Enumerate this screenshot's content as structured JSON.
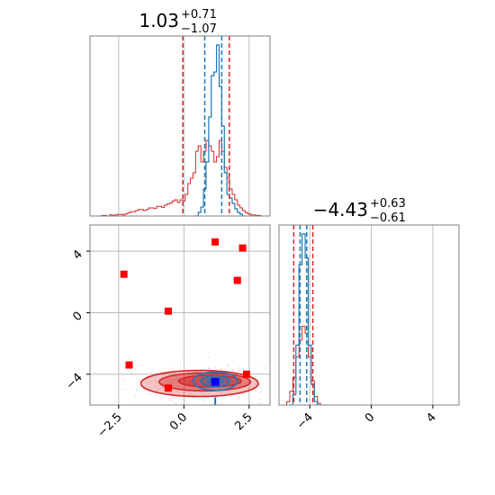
{
  "chart_data": {
    "type": "corner",
    "colors": {
      "posterior_a": "#d62728",
      "posterior_b": "#1f77b4",
      "truth": "#ff0000",
      "point": "#0000ff",
      "grid": "#b0b0b0"
    },
    "param_x": {
      "title_value": "1.03",
      "title_plus": "+0.71",
      "title_minus": "−1.07",
      "xlim": [
        -3.6,
        3.3
      ],
      "ticks": [
        -2.5,
        0.0,
        2.5
      ],
      "tick_labels": [
        "−2.5",
        "0.0",
        "2.5"
      ],
      "quantiles_red": [
        -0.04,
        1.03,
        1.74
      ],
      "quantiles_blue": [
        0.8,
        1.03,
        1.45
      ],
      "bin_width": 0.1,
      "hist_red": {
        "x": [
          -3.2,
          -3.1,
          -3.0,
          -2.9,
          -2.8,
          -2.7,
          -2.6,
          -2.5,
          -2.4,
          -2.3,
          -2.2,
          -2.1,
          -2.0,
          -1.9,
          -1.8,
          -1.7,
          -1.6,
          -1.5,
          -1.4,
          -1.3,
          -1.2,
          -1.1,
          -1.0,
          -0.9,
          -0.8,
          -0.7,
          -0.6,
          -0.5,
          -0.4,
          -0.3,
          -0.2,
          -0.1,
          0.0,
          0.1,
          0.2,
          0.3,
          0.4,
          0.5,
          0.6,
          0.7,
          0.8,
          0.9,
          1.0,
          1.1,
          1.2,
          1.3,
          1.4,
          1.5,
          1.6,
          1.7,
          1.8,
          1.9,
          2.0,
          2.1,
          2.2,
          2.3,
          2.4,
          2.5,
          2.6,
          2.7,
          2.8,
          2.9,
          3.0
        ],
        "y": [
          0.0,
          0.003,
          0.003,
          0.0,
          0.006,
          0.003,
          0.006,
          0.009,
          0.009,
          0.006,
          0.012,
          0.018,
          0.024,
          0.024,
          0.03,
          0.036,
          0.036,
          0.03,
          0.036,
          0.045,
          0.045,
          0.042,
          0.054,
          0.054,
          0.048,
          0.06,
          0.066,
          0.072,
          0.084,
          0.09,
          0.075,
          0.09,
          0.084,
          0.12,
          0.18,
          0.21,
          0.24,
          0.36,
          0.39,
          0.3,
          0.36,
          0.42,
          0.39,
          0.36,
          0.3,
          0.33,
          0.42,
          0.36,
          0.27,
          0.21,
          0.15,
          0.12,
          0.09,
          0.06,
          0.045,
          0.03,
          0.018,
          0.012,
          0.006,
          0.006,
          0.003,
          0.003,
          0.0
        ]
      },
      "hist_blue": {
        "x": [
          0.4,
          0.5,
          0.6,
          0.7,
          0.8,
          0.9,
          1.0,
          1.1,
          1.2,
          1.3,
          1.4,
          1.5,
          1.6,
          1.7,
          1.8,
          1.9,
          2.0,
          2.1,
          2.2,
          2.3
        ],
        "y": [
          0.0,
          0.0,
          0.02,
          0.05,
          0.15,
          0.3,
          0.55,
          0.78,
          0.8,
          0.95,
          0.72,
          0.5,
          0.24,
          0.12,
          0.1,
          0.07,
          0.04,
          0.02,
          0.01,
          0.0
        ]
      }
    },
    "param_y": {
      "title_value": "−4.43",
      "title_plus": "+0.63",
      "title_minus": "−0.61",
      "ylim": [
        -6.0,
        5.7
      ],
      "ticks": [
        -4,
        0,
        4
      ],
      "tick_labels": [
        "−4",
        "0",
        "4"
      ],
      "quantiles_red": [
        -5.04,
        -4.43,
        -3.8
      ],
      "quantiles_blue": [
        -4.63,
        -4.43,
        -4.2
      ],
      "bin_width": 0.2,
      "hist_red": {
        "x": [
          -5.6,
          -5.4,
          -5.2,
          -5.0,
          -4.8,
          -4.6,
          -4.4,
          -4.2,
          -4.0,
          -3.8,
          -3.6,
          -3.4,
          -3.2
        ],
        "y": [
          0.0,
          0.02,
          0.08,
          0.16,
          0.28,
          0.38,
          0.46,
          0.42,
          0.28,
          0.14,
          0.05,
          0.01,
          0.0
        ]
      },
      "hist_blue": {
        "x": [
          -5.2,
          -5.0,
          -4.8,
          -4.6,
          -4.4,
          -4.2,
          -4.0,
          -3.8,
          -3.6,
          -3.4
        ],
        "y": [
          0.0,
          0.06,
          0.35,
          0.82,
          1.0,
          0.86,
          0.35,
          0.12,
          0.02,
          0.0
        ]
      }
    },
    "panel_y_xlim": [
      -6.0,
      5.7
    ],
    "panel_y_ticks": [
      -4,
      0,
      4
    ],
    "panel_y_tick_labels": [
      "−4",
      "0",
      "4"
    ],
    "truth_points": [
      {
        "x": 2.25,
        "y": 4.2
      },
      {
        "x": 1.2,
        "y": 4.6
      },
      {
        "x": -2.3,
        "y": 2.5
      },
      {
        "x": 2.05,
        "y": 2.1
      },
      {
        "x": -0.6,
        "y": 0.1
      },
      {
        "x": -2.1,
        "y": -3.4
      },
      {
        "x": 2.4,
        "y": -4.0
      },
      {
        "x": -0.6,
        "y": -4.9
      }
    ],
    "highlight_point": {
      "x": 1.2,
      "y": -4.5
    },
    "contours_red": [
      {
        "cx": 0.6,
        "cy": -4.6,
        "rx": 2.25,
        "ry": 0.85
      },
      {
        "cx": 0.8,
        "cy": -4.5,
        "rx": 1.75,
        "ry": 0.58
      },
      {
        "cx": 1.0,
        "cy": -4.45,
        "rx": 1.2,
        "ry": 0.38
      }
    ],
    "contours_blue": [
      {
        "cx": 1.2,
        "cy": -4.45,
        "rx": 0.85,
        "ry": 0.6
      },
      {
        "cx": 1.2,
        "cy": -4.45,
        "rx": 0.55,
        "ry": 0.35
      },
      {
        "cx": 1.2,
        "cy": -4.45,
        "rx": 0.3,
        "ry": 0.2
      }
    ]
  }
}
